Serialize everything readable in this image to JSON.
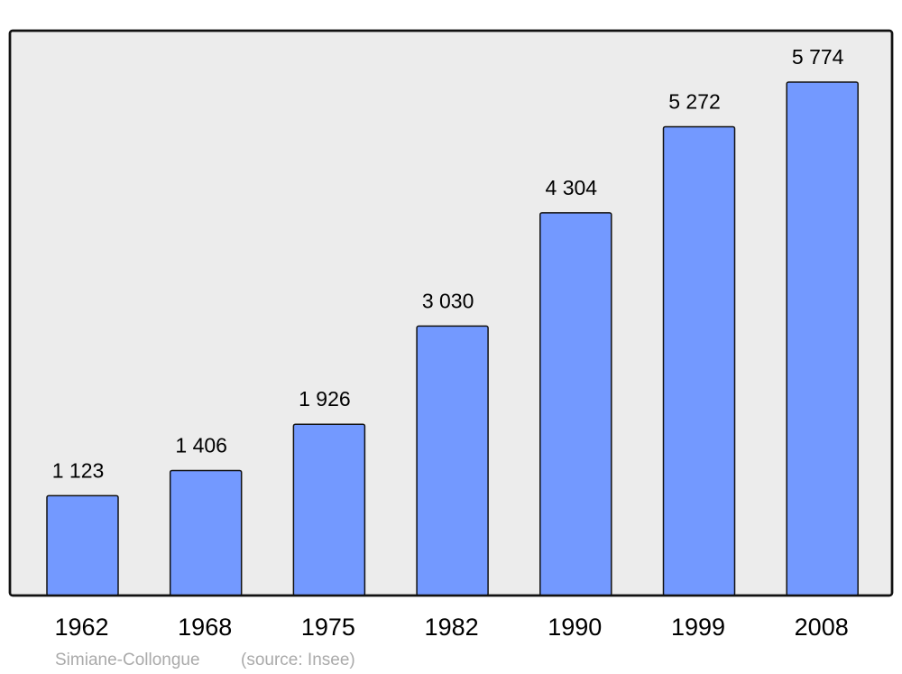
{
  "chart_data": {
    "type": "bar",
    "categories": [
      "1962",
      "1968",
      "1975",
      "1982",
      "1990",
      "1999",
      "2008"
    ],
    "values": [
      1123,
      1406,
      1926,
      3030,
      4304,
      5272,
      5774
    ],
    "value_labels": [
      "1 123",
      "1 406",
      "1 926",
      "3 030",
      "4 304",
      "5 272",
      "5 774"
    ],
    "title": "",
    "xlabel": "",
    "ylabel": "",
    "ylim": [
      0,
      5774
    ],
    "grid": false,
    "legend": "none",
    "footer": {
      "place": "Simiane-Collongue",
      "source": "(source: Insee)"
    },
    "colors": {
      "bar": "#7399ff",
      "plot_background": "#ececec",
      "footer_text": "#aaaaaa"
    }
  }
}
